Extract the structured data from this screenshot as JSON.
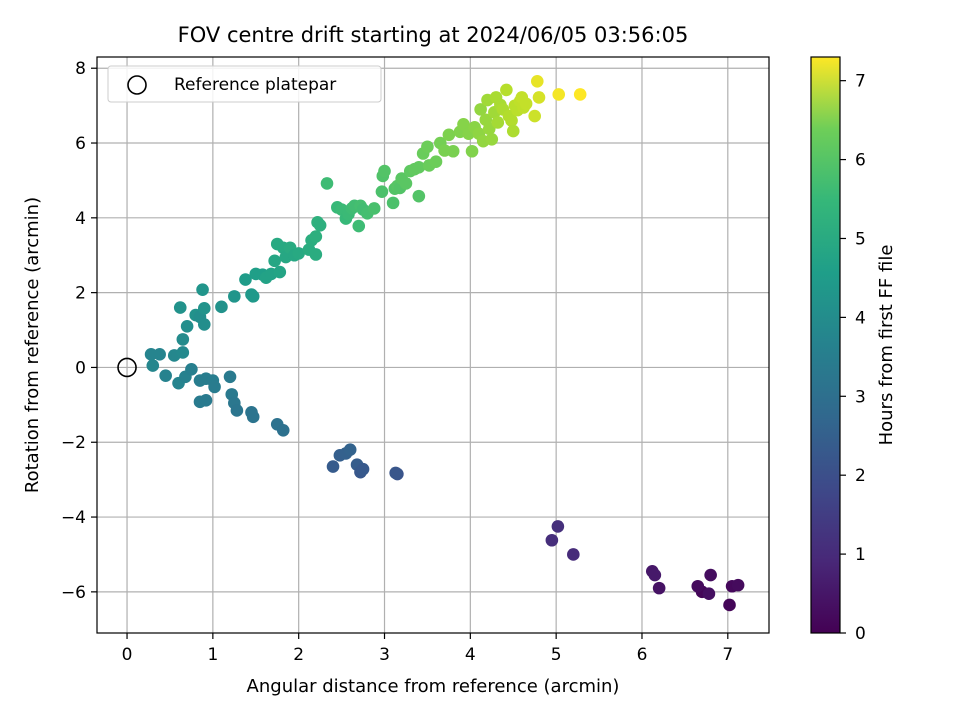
{
  "chart_data": {
    "type": "scatter",
    "title": "FOV centre drift starting at 2024/06/05 03:56:05",
    "xlabel": "Angular distance from reference (arcmin)",
    "ylabel": "Rotation from reference (arcmin)",
    "xlim": [
      -0.35,
      7.48
    ],
    "ylim": [
      -7.1,
      8.3
    ],
    "xticks": [
      0,
      1,
      2,
      3,
      4,
      5,
      6,
      7
    ],
    "yticks": [
      -6,
      -4,
      -2,
      0,
      2,
      4,
      6,
      8
    ],
    "grid": true,
    "legend": {
      "placement": "top-left",
      "entries": [
        "Reference platepar"
      ]
    },
    "reference_point": {
      "x": 0,
      "y": 0
    },
    "colorbar": {
      "label": "Hours from first FF file",
      "colormap": "viridis",
      "range": [
        0,
        7.3
      ],
      "ticks": [
        0,
        1,
        2,
        3,
        4,
        5,
        6,
        7
      ]
    },
    "series": [
      {
        "values": [
          {
            "x": 6.7,
            "y": -6.0,
            "c": 0.1
          },
          {
            "x": 6.65,
            "y": -5.85,
            "c": 0.2
          },
          {
            "x": 6.8,
            "y": -5.55,
            "c": 0.25
          },
          {
            "x": 6.78,
            "y": -6.05,
            "c": 0.3
          },
          {
            "x": 7.02,
            "y": -6.35,
            "c": 0.1
          },
          {
            "x": 7.05,
            "y": -5.85,
            "c": 0.15
          },
          {
            "x": 7.12,
            "y": -5.82,
            "c": 0.2
          },
          {
            "x": 6.2,
            "y": -5.9,
            "c": 0.35
          },
          {
            "x": 6.12,
            "y": -5.45,
            "c": 0.45
          },
          {
            "x": 6.15,
            "y": -5.55,
            "c": 0.5
          },
          {
            "x": 4.95,
            "y": -4.62,
            "c": 0.95
          },
          {
            "x": 5.02,
            "y": -4.25,
            "c": 1.0
          },
          {
            "x": 5.2,
            "y": -5.0,
            "c": 0.9
          },
          {
            "x": 2.4,
            "y": -2.65,
            "c": 2.1
          },
          {
            "x": 2.48,
            "y": -2.35,
            "c": 2.2
          },
          {
            "x": 2.55,
            "y": -2.3,
            "c": 2.25
          },
          {
            "x": 2.6,
            "y": -2.2,
            "c": 2.3
          },
          {
            "x": 2.68,
            "y": -2.6,
            "c": 2.15
          },
          {
            "x": 2.72,
            "y": -2.8,
            "c": 2.0
          },
          {
            "x": 2.75,
            "y": -2.72,
            "c": 2.05
          },
          {
            "x": 3.15,
            "y": -2.85,
            "c": 1.9
          },
          {
            "x": 3.13,
            "y": -2.82,
            "c": 1.95
          },
          {
            "x": 0.28,
            "y": 0.35,
            "c": 3.3
          },
          {
            "x": 0.3,
            "y": 0.05,
            "c": 3.35
          },
          {
            "x": 0.38,
            "y": 0.35,
            "c": 3.3
          },
          {
            "x": 0.45,
            "y": -0.22,
            "c": 3.25
          },
          {
            "x": 0.55,
            "y": 0.32,
            "c": 3.4
          },
          {
            "x": 0.6,
            "y": -0.42,
            "c": 3.3
          },
          {
            "x": 0.65,
            "y": 0.4,
            "c": 3.45
          },
          {
            "x": 0.65,
            "y": 0.75,
            "c": 3.5
          },
          {
            "x": 0.68,
            "y": -0.25,
            "c": 3.2
          },
          {
            "x": 0.75,
            "y": -0.05,
            "c": 3.15
          },
          {
            "x": 0.7,
            "y": 1.1,
            "c": 3.6
          },
          {
            "x": 0.62,
            "y": 1.6,
            "c": 3.7
          },
          {
            "x": 0.8,
            "y": 1.4,
            "c": 3.7
          },
          {
            "x": 0.85,
            "y": 1.35,
            "c": 3.6
          },
          {
            "x": 0.88,
            "y": 2.08,
            "c": 3.8
          },
          {
            "x": 0.9,
            "y": 1.58,
            "c": 3.75
          },
          {
            "x": 0.9,
            "y": 1.15,
            "c": 3.6
          },
          {
            "x": 0.85,
            "y": -0.35,
            "c": 3.1
          },
          {
            "x": 0.92,
            "y": -0.3,
            "c": 3.1
          },
          {
            "x": 0.85,
            "y": -0.92,
            "c": 3.0
          },
          {
            "x": 0.92,
            "y": -0.88,
            "c": 3.0
          },
          {
            "x": 1.0,
            "y": -0.35,
            "c": 3.1
          },
          {
            "x": 1.02,
            "y": -0.52,
            "c": 3.05
          },
          {
            "x": 1.1,
            "y": 1.62,
            "c": 3.7
          },
          {
            "x": 1.2,
            "y": -0.25,
            "c": 3.0
          },
          {
            "x": 1.22,
            "y": -0.72,
            "c": 2.95
          },
          {
            "x": 1.25,
            "y": -0.95,
            "c": 2.9
          },
          {
            "x": 1.28,
            "y": -1.15,
            "c": 2.85
          },
          {
            "x": 1.25,
            "y": 1.9,
            "c": 3.8
          },
          {
            "x": 1.45,
            "y": -1.2,
            "c": 2.8
          },
          {
            "x": 1.47,
            "y": -1.32,
            "c": 2.8
          },
          {
            "x": 1.75,
            "y": -1.52,
            "c": 2.75
          },
          {
            "x": 1.82,
            "y": -1.68,
            "c": 2.7
          },
          {
            "x": 1.38,
            "y": 2.35,
            "c": 4.0
          },
          {
            "x": 1.45,
            "y": 1.95,
            "c": 3.9
          },
          {
            "x": 1.47,
            "y": 1.9,
            "c": 3.9
          },
          {
            "x": 1.5,
            "y": 2.5,
            "c": 4.1
          },
          {
            "x": 1.58,
            "y": 2.48,
            "c": 4.1
          },
          {
            "x": 1.62,
            "y": 2.4,
            "c": 4.2
          },
          {
            "x": 1.68,
            "y": 2.5,
            "c": 4.2
          },
          {
            "x": 1.72,
            "y": 2.85,
            "c": 4.3
          },
          {
            "x": 1.75,
            "y": 3.3,
            "c": 4.4
          },
          {
            "x": 1.78,
            "y": 2.55,
            "c": 4.25
          },
          {
            "x": 1.82,
            "y": 3.2,
            "c": 4.4
          },
          {
            "x": 1.85,
            "y": 2.95,
            "c": 4.35
          },
          {
            "x": 1.9,
            "y": 3.2,
            "c": 4.45
          },
          {
            "x": 1.95,
            "y": 3.0,
            "c": 4.35
          },
          {
            "x": 2.0,
            "y": 3.05,
            "c": 4.4
          },
          {
            "x": 2.12,
            "y": 3.15,
            "c": 4.5
          },
          {
            "x": 2.15,
            "y": 3.4,
            "c": 4.55
          },
          {
            "x": 2.2,
            "y": 3.5,
            "c": 4.6
          },
          {
            "x": 2.2,
            "y": 3.02,
            "c": 4.5
          },
          {
            "x": 2.22,
            "y": 3.88,
            "c": 4.65
          },
          {
            "x": 2.25,
            "y": 3.8,
            "c": 4.6
          },
          {
            "x": 2.33,
            "y": 4.92,
            "c": 5.0
          },
          {
            "x": 2.45,
            "y": 4.28,
            "c": 4.9
          },
          {
            "x": 2.5,
            "y": 4.22,
            "c": 4.95
          },
          {
            "x": 2.55,
            "y": 3.98,
            "c": 4.9
          },
          {
            "x": 2.58,
            "y": 4.1,
            "c": 4.95
          },
          {
            "x": 2.62,
            "y": 4.25,
            "c": 5.0
          },
          {
            "x": 2.65,
            "y": 4.32,
            "c": 5.05
          },
          {
            "x": 2.7,
            "y": 3.78,
            "c": 5.0
          },
          {
            "x": 2.72,
            "y": 4.32,
            "c": 5.1
          },
          {
            "x": 2.75,
            "y": 4.22,
            "c": 5.05
          },
          {
            "x": 2.8,
            "y": 4.12,
            "c": 5.1
          },
          {
            "x": 2.88,
            "y": 4.25,
            "c": 5.15
          },
          {
            "x": 2.97,
            "y": 4.7,
            "c": 5.2
          },
          {
            "x": 2.98,
            "y": 5.12,
            "c": 5.25
          },
          {
            "x": 3.0,
            "y": 5.25,
            "c": 5.3
          },
          {
            "x": 3.1,
            "y": 4.4,
            "c": 5.2
          },
          {
            "x": 3.12,
            "y": 4.78,
            "c": 5.3
          },
          {
            "x": 3.15,
            "y": 4.85,
            "c": 5.35
          },
          {
            "x": 3.18,
            "y": 4.8,
            "c": 5.3
          },
          {
            "x": 3.2,
            "y": 5.05,
            "c": 5.4
          },
          {
            "x": 3.25,
            "y": 4.92,
            "c": 5.4
          },
          {
            "x": 3.3,
            "y": 5.25,
            "c": 5.45
          },
          {
            "x": 3.35,
            "y": 5.3,
            "c": 5.5
          },
          {
            "x": 3.4,
            "y": 5.35,
            "c": 5.5
          },
          {
            "x": 3.4,
            "y": 4.58,
            "c": 5.3
          },
          {
            "x": 3.45,
            "y": 5.72,
            "c": 5.6
          },
          {
            "x": 3.5,
            "y": 5.9,
            "c": 5.65
          },
          {
            "x": 3.52,
            "y": 5.4,
            "c": 5.6
          },
          {
            "x": 3.6,
            "y": 5.5,
            "c": 5.65
          },
          {
            "x": 3.65,
            "y": 6.0,
            "c": 5.75
          },
          {
            "x": 3.7,
            "y": 5.8,
            "c": 5.8
          },
          {
            "x": 3.75,
            "y": 6.22,
            "c": 5.85
          },
          {
            "x": 3.8,
            "y": 5.78,
            "c": 5.8
          },
          {
            "x": 3.88,
            "y": 6.3,
            "c": 5.9
          },
          {
            "x": 3.92,
            "y": 6.5,
            "c": 5.95
          },
          {
            "x": 3.98,
            "y": 6.25,
            "c": 5.95
          },
          {
            "x": 4.02,
            "y": 5.78,
            "c": 5.9
          },
          {
            "x": 4.05,
            "y": 6.42,
            "c": 6.0
          },
          {
            "x": 4.1,
            "y": 6.25,
            "c": 6.05
          },
          {
            "x": 4.12,
            "y": 6.9,
            "c": 6.1
          },
          {
            "x": 4.15,
            "y": 6.05,
            "c": 6.1
          },
          {
            "x": 4.18,
            "y": 6.62,
            "c": 6.15
          },
          {
            "x": 4.2,
            "y": 7.15,
            "c": 6.25
          },
          {
            "x": 4.22,
            "y": 6.38,
            "c": 6.15
          },
          {
            "x": 4.25,
            "y": 6.1,
            "c": 6.15
          },
          {
            "x": 4.28,
            "y": 6.82,
            "c": 6.25
          },
          {
            "x": 4.3,
            "y": 7.22,
            "c": 6.35
          },
          {
            "x": 4.32,
            "y": 6.55,
            "c": 6.3
          },
          {
            "x": 4.35,
            "y": 7.02,
            "c": 6.35
          },
          {
            "x": 4.38,
            "y": 6.9,
            "c": 6.4
          },
          {
            "x": 4.42,
            "y": 7.42,
            "c": 6.5
          },
          {
            "x": 4.45,
            "y": 6.72,
            "c": 6.45
          },
          {
            "x": 4.48,
            "y": 6.6,
            "c": 6.45
          },
          {
            "x": 4.5,
            "y": 6.32,
            "c": 6.4
          },
          {
            "x": 4.52,
            "y": 7.0,
            "c": 6.55
          },
          {
            "x": 4.55,
            "y": 6.88,
            "c": 6.55
          },
          {
            "x": 4.58,
            "y": 7.12,
            "c": 6.6
          },
          {
            "x": 4.6,
            "y": 7.22,
            "c": 6.65
          },
          {
            "x": 4.62,
            "y": 6.95,
            "c": 6.6
          },
          {
            "x": 4.65,
            "y": 7.05,
            "c": 6.65
          },
          {
            "x": 4.75,
            "y": 6.72,
            "c": 6.75
          },
          {
            "x": 4.8,
            "y": 7.22,
            "c": 6.85
          },
          {
            "x": 4.78,
            "y": 7.65,
            "c": 7.05
          },
          {
            "x": 5.03,
            "y": 7.3,
            "c": 7.2
          },
          {
            "x": 5.28,
            "y": 7.3,
            "c": 7.3
          }
        ]
      }
    ]
  }
}
